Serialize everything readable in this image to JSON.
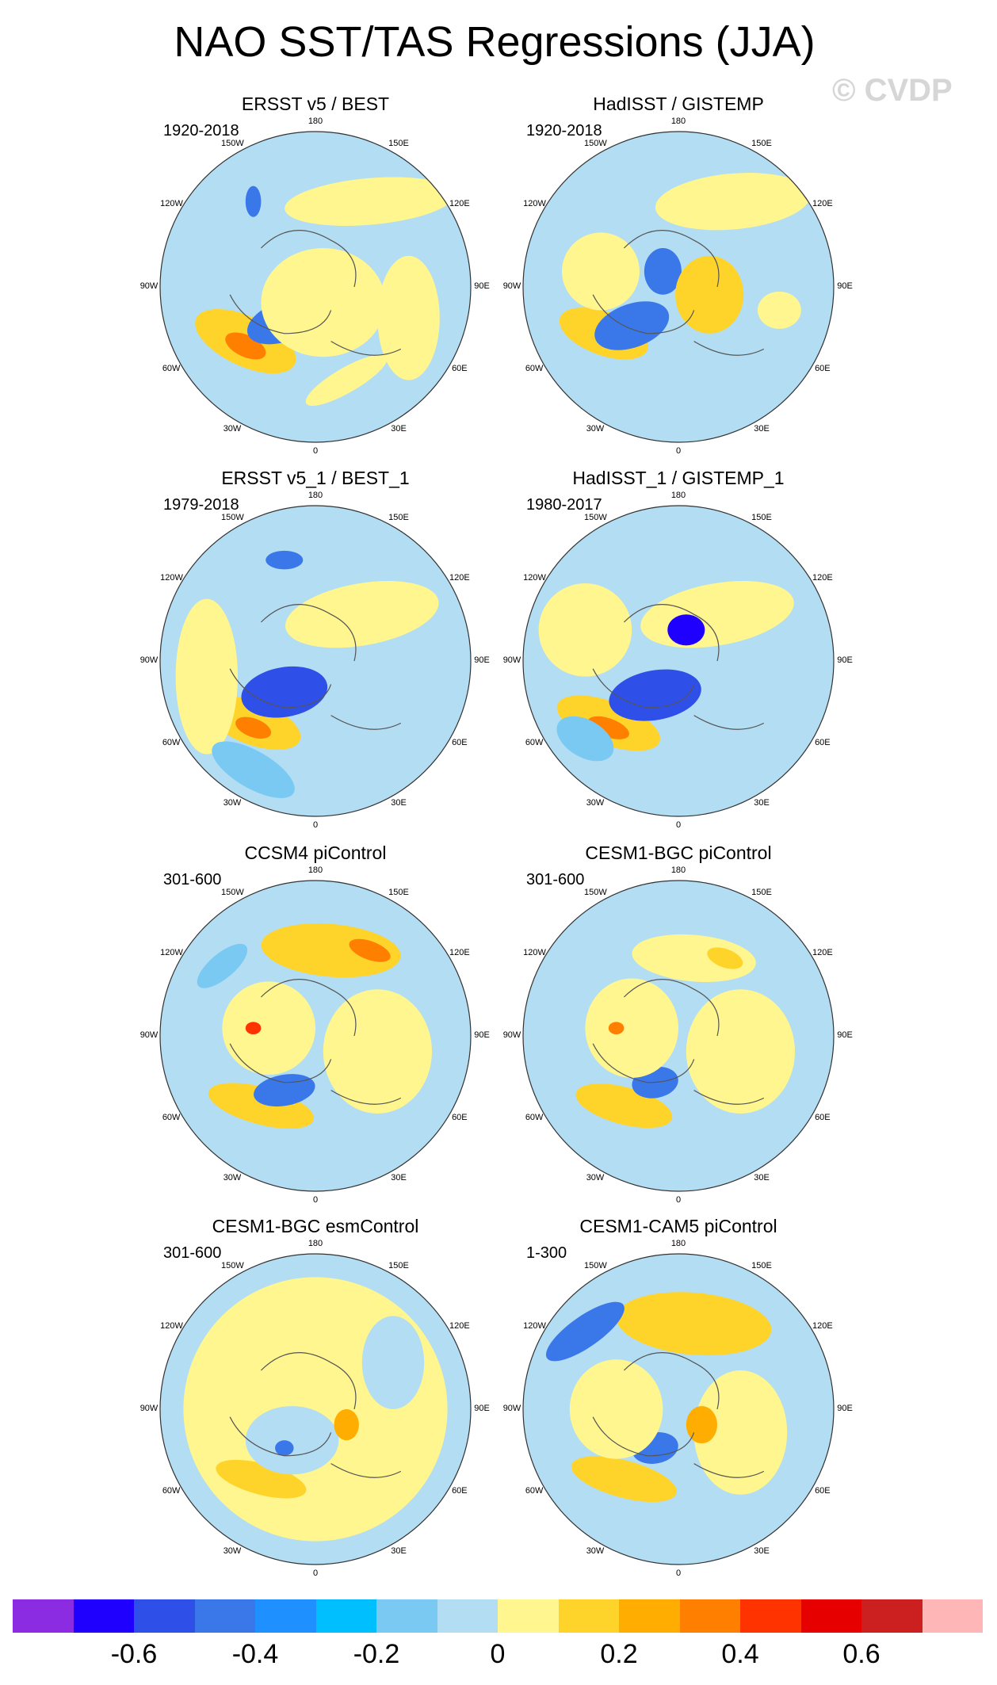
{
  "title": "NAO SST/TAS Regressions (JJA)",
  "watermark": "© CVDP",
  "panels": [
    {
      "title": "ERSST v5 / BEST",
      "period": "1920-2018"
    },
    {
      "title": "HadISST / GISTEMP",
      "period": "1920-2018"
    },
    {
      "title": "ERSST v5_1 / BEST_1",
      "period": "1979-2018"
    },
    {
      "title": "HadISST_1 / GISTEMP_1",
      "period": "1980-2017"
    },
    {
      "title": "CCSM4 piControl",
      "period": "301-600"
    },
    {
      "title": "CESM1-BGC piControl",
      "period": "301-600"
    },
    {
      "title": "CESM1-BGC esmControl",
      "period": "301-600"
    },
    {
      "title": "CESM1-CAM5 piControl",
      "period": "1-300"
    }
  ],
  "longitude_labels": [
    "180",
    "150E",
    "120E",
    "90E",
    "60E",
    "30E",
    "0",
    "30W",
    "60W",
    "90W",
    "120W",
    "150W"
  ],
  "colorbar": {
    "colors": [
      "#8b2be2",
      "#1f00ff",
      "#2e4fe8",
      "#3a78ea",
      "#1e90ff",
      "#00bfff",
      "#79c9f2",
      "#b3ddf2",
      "#fff68f",
      "#ffd42a",
      "#ffad00",
      "#ff7f00",
      "#ff3300",
      "#e60000",
      "#cc1f1f",
      "#ffb6b6"
    ],
    "labels": [
      "-0.6",
      "-0.4",
      "-0.2",
      "0",
      "0.2",
      "0.4",
      "0.6"
    ]
  }
}
